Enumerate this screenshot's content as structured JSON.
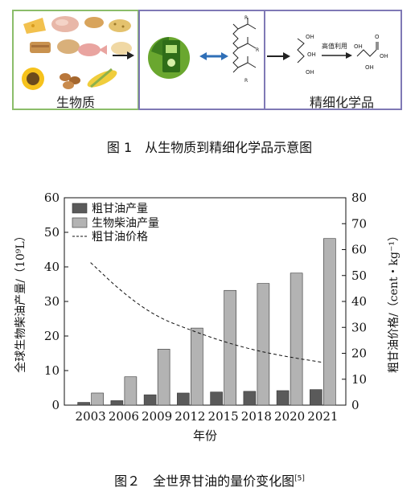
{
  "figure1": {
    "left_label": "生物质",
    "right_label": "精细化学品",
    "arrow_text": "高值利用",
    "oh_labels": [
      "OH",
      "OH",
      "OH",
      "OH",
      "OH",
      "OH"
    ],
    "acid_label": "O",
    "r_labels": [
      "R",
      "R",
      "R"
    ],
    "caption": "图 1　从生物质到精细化学品示意图"
  },
  "chart_data": {
    "type": "bar",
    "categories": [
      "2003",
      "2006",
      "2009",
      "2012",
      "2015",
      "2018",
      "2020",
      "2021"
    ],
    "series": [
      {
        "name": "粗甘油产量",
        "axis": "left",
        "color": "#5a5a5a",
        "values": [
          0.8,
          1.3,
          3.0,
          3.5,
          3.8,
          4.0,
          4.2,
          4.5
        ]
      },
      {
        "name": "生物柴油产量",
        "axis": "left",
        "color": "#b3b3b3",
        "values": [
          3.5,
          8.2,
          16.2,
          22.3,
          33.2,
          35.2,
          38.2,
          48.2
        ]
      },
      {
        "name": "粗甘油价格",
        "axis": "right",
        "type": "line",
        "style": "dashed",
        "values": [
          55,
          43,
          34,
          29,
          24.5,
          21,
          18.5,
          16.5
        ]
      }
    ],
    "ylabel_left": "全球生物柴油产量/（10⁹L）",
    "ylabel_right": "粗甘油价格/（cent・kg⁻¹）",
    "xlabel": "年份",
    "ylim_left": [
      0,
      60
    ],
    "yticks_left": [
      "0",
      "10",
      "20",
      "30",
      "40",
      "50",
      "60"
    ],
    "ylim_right": [
      0,
      80
    ],
    "yticks_right": [
      "0",
      "10",
      "20",
      "30",
      "40",
      "50",
      "60",
      "70",
      "80"
    ],
    "legend_position": "top-left",
    "grid": false
  },
  "figure2_caption": "图２　全世界甘油的量价变化图",
  "figure2_ref": "[5]"
}
